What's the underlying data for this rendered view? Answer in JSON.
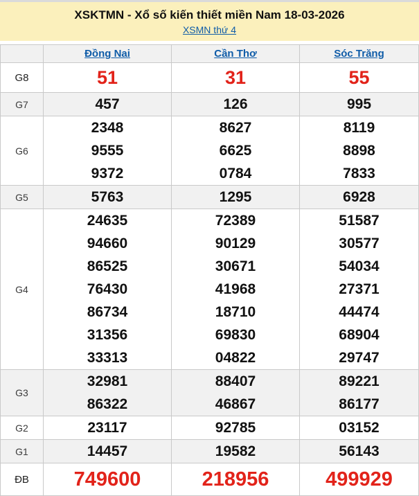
{
  "page": {
    "title": "XSKTMN - Xổ số kiến thiết miền Nam 18-03-2026",
    "subtitle_link": "XSMN thứ 4"
  },
  "colors": {
    "banner_yellow": "#fbf0bc",
    "link_blue": "#0f5ca8",
    "highlight_red": "#e2231a",
    "shaded_row_gray": "#f1f1f1",
    "border_gray": "#c9c9c9"
  },
  "table": {
    "provinces": [
      "Đồng Nai",
      "Cần Thơ",
      "Sóc Trăng"
    ],
    "rows": [
      {
        "label": "G8",
        "highlight": true,
        "values": [
          [
            "51"
          ],
          [
            "31"
          ],
          [
            "55"
          ]
        ]
      },
      {
        "label": "G7",
        "values": [
          [
            "457"
          ],
          [
            "126"
          ],
          [
            "995"
          ]
        ]
      },
      {
        "label": "G6",
        "values": [
          [
            "2348",
            "9555",
            "9372"
          ],
          [
            "8627",
            "6625",
            "0784"
          ],
          [
            "8119",
            "8898",
            "7833"
          ]
        ]
      },
      {
        "label": "G5",
        "values": [
          [
            "5763"
          ],
          [
            "1295"
          ],
          [
            "6928"
          ]
        ]
      },
      {
        "label": "G4",
        "values": [
          [
            "24635",
            "94660",
            "86525",
            "76430",
            "86734",
            "31356",
            "33313"
          ],
          [
            "72389",
            "90129",
            "30671",
            "41968",
            "18710",
            "69830",
            "04822"
          ],
          [
            "51587",
            "30577",
            "54034",
            "27371",
            "44474",
            "68904",
            "29747"
          ]
        ]
      },
      {
        "label": "G3",
        "values": [
          [
            "32981",
            "86322"
          ],
          [
            "88407",
            "46867"
          ],
          [
            "89221",
            "86177"
          ]
        ]
      },
      {
        "label": "G2",
        "values": [
          [
            "23117"
          ],
          [
            "92785"
          ],
          [
            "03152"
          ]
        ]
      },
      {
        "label": "G1",
        "values": [
          [
            "14457"
          ],
          [
            "19582"
          ],
          [
            "56143"
          ]
        ]
      },
      {
        "label": "ĐB",
        "highlight": true,
        "values": [
          [
            "749600"
          ],
          [
            "218956"
          ],
          [
            "499929"
          ]
        ]
      }
    ]
  }
}
